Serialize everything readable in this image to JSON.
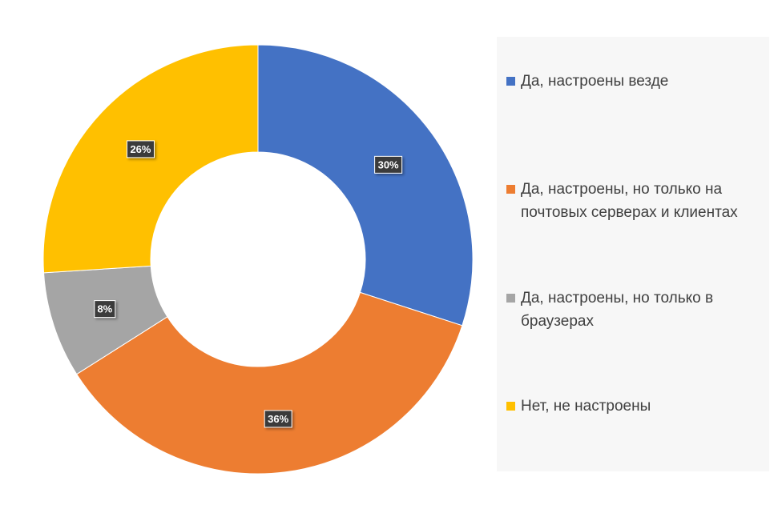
{
  "chart_data": {
    "type": "donut",
    "categories": [
      "Да, настроены везде",
      "Да, настроены, но только на почтовых серверах и клиентах",
      "Да, настроены, но только в браузерах",
      "Нет, не настроены"
    ],
    "values": [
      30,
      36,
      8,
      26
    ],
    "data_labels": [
      "30%",
      "36%",
      "8%",
      "26%"
    ],
    "colors": [
      "#4472c4",
      "#ed7d31",
      "#a5a5a5",
      "#ffc000"
    ],
    "legend_placement": "right",
    "title": ""
  }
}
